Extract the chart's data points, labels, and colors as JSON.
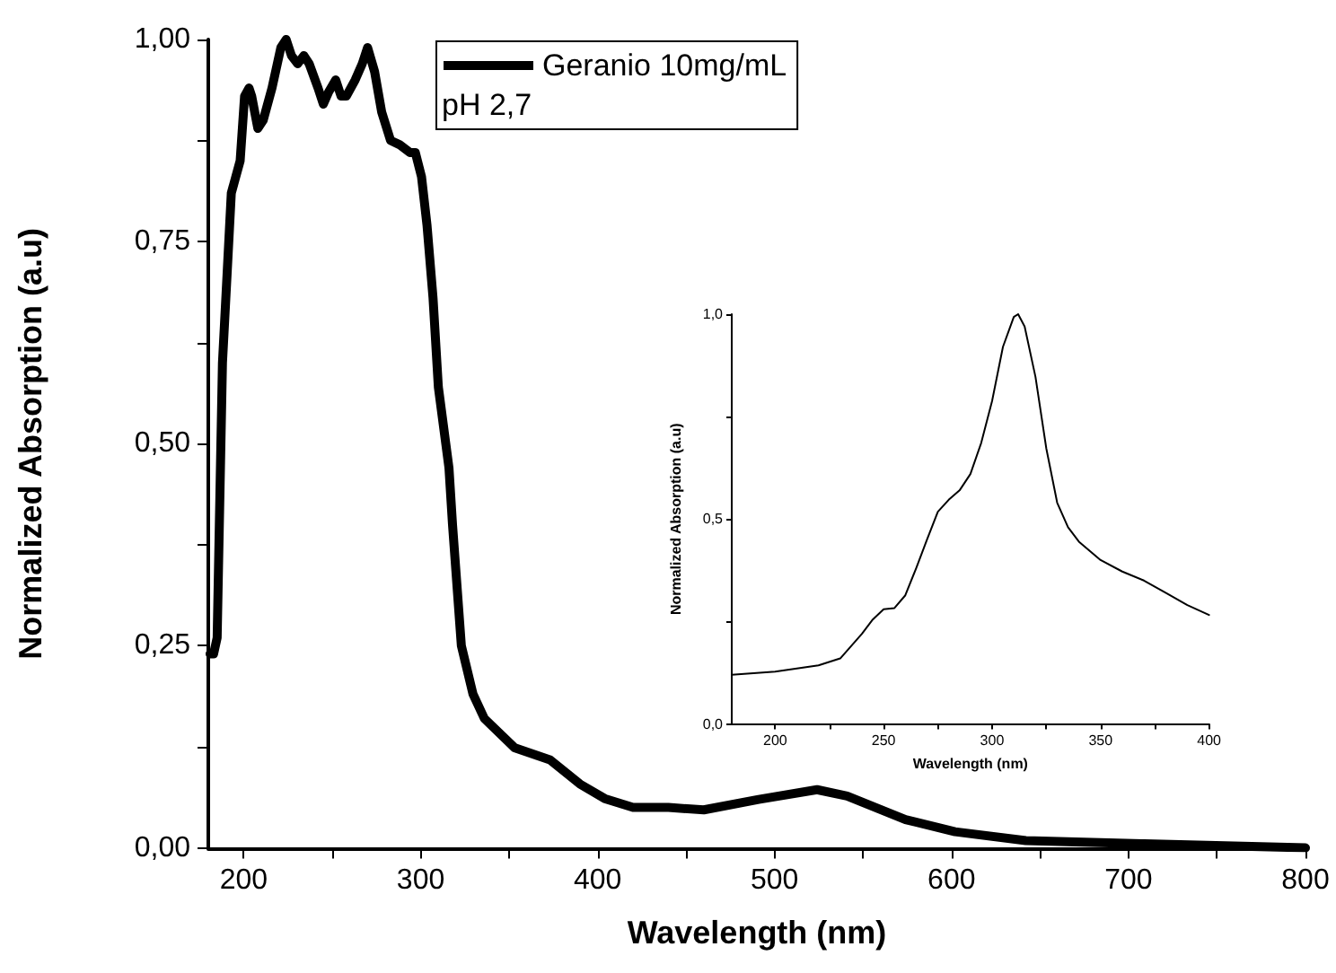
{
  "chart_data": [
    {
      "type": "line",
      "xlabel": "Wavelength (nm)",
      "ylabel": "Normalized Absorption (a.u)",
      "legend_title": "pH 2,7",
      "legend": "top",
      "grid": false,
      "marker": "none",
      "line_style": "solid",
      "xlim": [
        180,
        800
      ],
      "xticks": [
        200,
        {
          "value": 250,
          "label": null
        },
        300,
        {
          "value": 350,
          "label": null
        },
        400,
        {
          "value": 450,
          "label": null
        },
        500,
        {
          "value": 550,
          "label": null
        },
        600,
        {
          "value": 650,
          "label": null
        },
        700,
        {
          "value": 750,
          "label": null
        },
        800
      ],
      "ylim": [
        0,
        1
      ],
      "yticks": [
        {
          "value": 0,
          "label": "0,00"
        },
        {
          "value": 0.125,
          "label": null
        },
        {
          "value": 0.25,
          "label": "0,25"
        },
        {
          "value": 0.375,
          "label": null
        },
        {
          "value": 0.5,
          "label": "0,50"
        },
        {
          "value": 0.625,
          "label": null
        },
        {
          "value": 0.75,
          "label": "0,75"
        },
        {
          "value": 0.875,
          "label": null
        },
        {
          "value": 1,
          "label": "1,00"
        }
      ],
      "series": [
        {
          "name": "Geranio 10mg/mL",
          "color": "#000000",
          "x": [
            181,
            183,
            185,
            188,
            193,
            195,
            198,
            200.5,
            203,
            204.5,
            208,
            211,
            216,
            221,
            224,
            227,
            230.5,
            234,
            237,
            242,
            245,
            248,
            252,
            255,
            258,
            263,
            267,
            270,
            274,
            278,
            283,
            288,
            294,
            297,
            300.5,
            303.6,
            307,
            310,
            316,
            318,
            323,
            329.6,
            336,
            353,
            373,
            390,
            404,
            420,
            440,
            460,
            491,
            524,
            541,
            574,
            602,
            642,
            709,
            800
          ],
          "values": [
            0.24,
            0.24,
            0.26,
            0.6,
            0.81,
            0.826,
            0.85,
            0.93,
            0.94,
            0.93,
            0.89,
            0.9,
            0.94,
            0.99,
            1.0,
            0.98,
            0.97,
            0.98,
            0.97,
            0.94,
            0.92,
            0.935,
            0.95,
            0.93,
            0.93,
            0.95,
            0.97,
            0.99,
            0.96,
            0.91,
            0.875,
            0.87,
            0.86,
            0.86,
            0.83,
            0.77,
            0.68,
            0.57,
            0.47,
            0.4,
            0.25,
            0.19,
            0.16,
            0.124,
            0.109,
            0.079,
            0.061,
            0.05,
            0.05,
            0.047,
            0.06,
            0.072,
            0.064,
            0.035,
            0.02,
            0.009,
            0.005,
            0.0
          ]
        }
      ]
    },
    {
      "type": "line",
      "xlabel": "Wavelength (nm)",
      "ylabel": "Normalized Absorption (a.u)",
      "grid": false,
      "marker": "none",
      "line_style": "solid",
      "xlim": [
        180,
        400
      ],
      "xticks": [
        200,
        {
          "value": 225,
          "label": null
        },
        250,
        {
          "value": 275,
          "label": null
        },
        300,
        {
          "value": 325,
          "label": null
        },
        350,
        {
          "value": 375,
          "label": null
        },
        400
      ],
      "ylim": [
        0,
        1
      ],
      "yticks": [
        {
          "value": 0,
          "label": "0,0"
        },
        {
          "value": 0.25,
          "label": null
        },
        {
          "value": 0.5,
          "label": "0,5"
        },
        {
          "value": 0.75,
          "label": null
        },
        {
          "value": 1,
          "label": "1,0"
        }
      ],
      "series": [
        {
          "color": "#000000",
          "x": [
            180,
            200,
            220,
            230,
            240,
            245,
            250,
            255,
            260,
            265,
            270,
            275,
            280,
            285,
            290,
            295,
            300,
            305,
            310,
            312,
            315,
            320,
            325,
            330,
            335,
            340,
            350,
            360,
            370,
            380,
            390,
            400
          ],
          "values": [
            0.12,
            0.128,
            0.143,
            0.16,
            0.22,
            0.255,
            0.28,
            0.283,
            0.314,
            0.38,
            0.45,
            0.518,
            0.547,
            0.57,
            0.61,
            0.686,
            0.788,
            0.92,
            0.993,
            1.0,
            0.97,
            0.847,
            0.672,
            0.54,
            0.48,
            0.445,
            0.4,
            0.372,
            0.35,
            0.32,
            0.29,
            0.266
          ]
        }
      ]
    }
  ]
}
